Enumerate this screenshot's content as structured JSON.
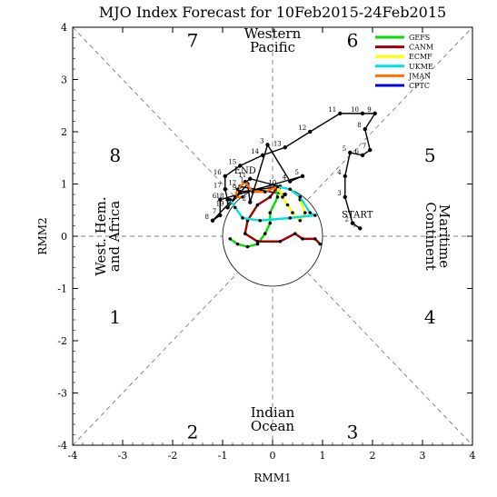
{
  "chart_data": {
    "type": "line",
    "title": "MJO Index Forecast for 10Feb2015-24Feb2015",
    "xlabel": "RMM1",
    "ylabel": "RMM2",
    "xlim": [
      -4,
      4
    ],
    "ylim": [
      -4,
      4
    ],
    "x_ticks": [
      "-4",
      "-3",
      "-2",
      "-1",
      "0",
      "1",
      "2",
      "3",
      "4"
    ],
    "y_ticks": [
      "-4",
      "-3",
      "-2",
      "-1",
      "0",
      "1",
      "2",
      "3",
      "4"
    ],
    "grid": false,
    "legend_position": "top-right",
    "phase_labels": [
      {
        "text": "1",
        "x": -3.15,
        "y": -1.55
      },
      {
        "text": "2",
        "x": -1.6,
        "y": -3.75
      },
      {
        "text": "3",
        "x": 1.6,
        "y": -3.75
      },
      {
        "text": "4",
        "x": 3.15,
        "y": -1.55
      },
      {
        "text": "5",
        "x": 3.15,
        "y": 1.55
      },
      {
        "text": "6",
        "x": 1.6,
        "y": 3.75
      },
      {
        "text": "7",
        "x": -1.6,
        "y": 3.75
      },
      {
        "text": "8",
        "x": -3.15,
        "y": 1.55
      }
    ],
    "region_labels": [
      {
        "lines": [
          "Western",
          "Pacific"
        ],
        "x": 0,
        "y": 3.75
      },
      {
        "lines": [
          "Indian",
          "Ocean"
        ],
        "x": 0,
        "y": -3.5
      },
      {
        "lines": [
          "West. Hem.",
          "and Africa"
        ],
        "x": -3.3,
        "y": 0,
        "rotate": -90
      },
      {
        "lines": [
          "Maritime",
          "Continent"
        ],
        "x": 3.3,
        "y": 0,
        "rotate": 90
      }
    ],
    "observed": {
      "start_label": "START",
      "end_label": "END",
      "points": [
        {
          "label": "1",
          "x": 1.75,
          "y": 0.15
        },
        {
          "label": "2",
          "x": 1.6,
          "y": 0.25
        },
        {
          "label": "3",
          "x": 1.45,
          "y": 0.75
        },
        {
          "label": "4",
          "x": 1.45,
          "y": 1.15
        },
        {
          "label": "5",
          "x": 1.55,
          "y": 1.6
        },
        {
          "label": "6",
          "x": 1.8,
          "y": 1.55
        },
        {
          "label": "7",
          "x": 1.95,
          "y": 1.65
        },
        {
          "label": "8",
          "x": 1.85,
          "y": 2.05
        },
        {
          "label": "9",
          "x": 2.05,
          "y": 2.35
        },
        {
          "label": "10",
          "x": 1.8,
          "y": 2.35
        },
        {
          "label": "11",
          "x": 1.35,
          "y": 2.35
        },
        {
          "label": "12",
          "x": 0.75,
          "y": 2.0
        },
        {
          "label": "13",
          "x": 0.25,
          "y": 1.7
        },
        {
          "label": "14",
          "x": -0.2,
          "y": 1.55
        },
        {
          "label": "15",
          "x": -0.65,
          "y": 1.35
        },
        {
          "label": "16",
          "x": -0.95,
          "y": 1.15
        },
        {
          "label": "17",
          "x": -0.95,
          "y": 0.9
        },
        {
          "label": "18",
          "x": -0.9,
          "y": 0.7
        },
        {
          "label": "19",
          "x": -0.9,
          "y": 0.55
        },
        {
          "label": "1",
          "x": -0.5,
          "y": 1.0
        },
        {
          "label": "2",
          "x": -0.45,
          "y": 0.65
        },
        {
          "label": "3",
          "x": -0.1,
          "y": 1.75
        },
        {
          "label": "4",
          "x": 0.35,
          "y": 1.05
        },
        {
          "label": "5",
          "x": 0.6,
          "y": 1.15
        },
        {
          "label": "6",
          "x": -1.05,
          "y": 0.7
        },
        {
          "label": "7",
          "x": -1.05,
          "y": 0.4
        },
        {
          "label": "8",
          "x": -1.2,
          "y": 0.3
        },
        {
          "label": "9",
          "x": -0.65,
          "y": 0.85
        },
        {
          "label": "10",
          "x": 0.15,
          "y": 0.95
        },
        {
          "label": "11",
          "x": -0.45,
          "y": 1.1
        },
        {
          "label": "12",
          "x": -0.65,
          "y": 0.95
        },
        {
          "label": "13",
          "x": 0.25,
          "y": 0.8
        }
      ]
    },
    "series": [
      {
        "name": "GEFS",
        "color": "#00e000",
        "points": [
          [
            0.05,
            0.95
          ],
          [
            0.1,
            0.75
          ],
          [
            -0.05,
            0.45
          ],
          [
            -0.05,
            0.25
          ],
          [
            -0.15,
            0.05
          ],
          [
            -0.3,
            -0.15
          ],
          [
            -0.5,
            -0.2
          ],
          [
            -0.7,
            -0.15
          ],
          [
            -0.85,
            -0.05
          ]
        ]
      },
      {
        "name": "CANM",
        "color": "#a00000",
        "points": [
          [
            0.1,
            0.95
          ],
          [
            -0.05,
            0.75
          ],
          [
            -0.3,
            0.6
          ],
          [
            -0.5,
            0.3
          ],
          [
            -0.55,
            0.05
          ],
          [
            -0.3,
            -0.1
          ],
          [
            0.15,
            -0.1
          ],
          [
            0.45,
            0.05
          ],
          [
            0.6,
            -0.05
          ],
          [
            0.85,
            -0.05
          ],
          [
            0.95,
            -0.15
          ]
        ]
      },
      {
        "name": "ECMF",
        "color": "#ffff00",
        "points": [
          [
            0.1,
            0.95
          ],
          [
            0.2,
            0.75
          ],
          [
            0.3,
            0.6
          ],
          [
            0.4,
            0.45
          ],
          [
            0.55,
            0.3
          ],
          [
            0.65,
            0.45
          ],
          [
            0.55,
            0.7
          ]
        ]
      },
      {
        "name": "UKME",
        "color": "#00e0e0",
        "points": [
          [
            0.1,
            0.95
          ],
          [
            0.35,
            0.9
          ],
          [
            0.55,
            0.75
          ],
          [
            0.75,
            0.45
          ],
          [
            0.85,
            0.4
          ],
          [
            0.35,
            0.35
          ],
          [
            -0.25,
            0.3
          ],
          [
            -0.6,
            0.35
          ],
          [
            -0.75,
            0.55
          ],
          [
            -0.85,
            0.7
          ]
        ]
      },
      {
        "name": "JMAN",
        "color": "#ff7000",
        "points": [
          [
            0.1,
            0.95
          ],
          [
            -0.15,
            0.85
          ],
          [
            -0.4,
            0.85
          ],
          [
            -0.55,
            1.05
          ],
          [
            -0.7,
            0.9
          ],
          [
            -0.75,
            0.75
          ],
          [
            -0.6,
            0.75
          ]
        ]
      },
      {
        "name": "CPTC",
        "color": "#0000e0",
        "points": []
      }
    ]
  }
}
